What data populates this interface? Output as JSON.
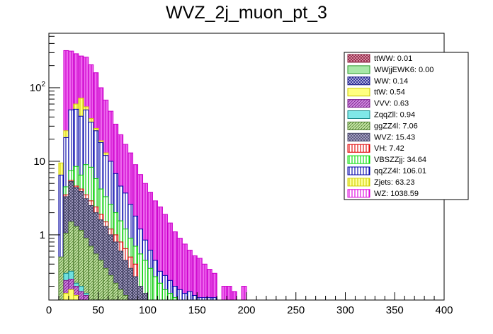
{
  "chart_data": {
    "type": "bar",
    "title": "WVZ_2j_muon_pt_3",
    "xlabel": "",
    "ylabel": "",
    "x_scale": "linear",
    "y_scale": "log",
    "xlim": [
      0,
      400
    ],
    "ylim": [
      0.13,
      550
    ],
    "bin_width": 5,
    "grid": false,
    "legend_position": "top-right",
    "x_ticks": [
      {
        "value": 0,
        "label": "0"
      },
      {
        "value": 50,
        "label": "50"
      },
      {
        "value": 100,
        "label": "100"
      },
      {
        "value": 150,
        "label": "150"
      },
      {
        "value": 200,
        "label": "200"
      },
      {
        "value": 250,
        "label": "250"
      },
      {
        "value": 300,
        "label": "300"
      },
      {
        "value": 350,
        "label": "350"
      },
      {
        "value": 400,
        "label": "400"
      }
    ],
    "y_ticks": [
      {
        "value": 1,
        "label": "1",
        "base": "1",
        "exp": ""
      },
      {
        "value": 10,
        "label": "10",
        "base": "10",
        "exp": ""
      },
      {
        "value": 100,
        "label": "10^2",
        "base": "10",
        "exp": "2"
      }
    ],
    "legend": [
      {
        "label": "ttWW: 0.01",
        "color": "#e8a0b8",
        "stroke": "#8a1f3c",
        "pattern": "cross"
      },
      {
        "label": "WWjjEWK6: 0.00",
        "color": "#a8e8a8",
        "stroke": "#2a9a2a",
        "pattern": "solid"
      },
      {
        "label": "WW: 0.14",
        "color": "#d0d0f0",
        "stroke": "#1a1a8a",
        "pattern": "crosshatch"
      },
      {
        "label": "ttW: 0.54",
        "color": "#ffff80",
        "stroke": "#c8c800",
        "pattern": "solid"
      },
      {
        "label": "VVV: 0.63",
        "color": "#cc88dd",
        "stroke": "#7a1a8a",
        "pattern": "diag"
      },
      {
        "label": "ZqqZll: 0.94",
        "color": "#80e8e8",
        "stroke": "#1a8a8a",
        "pattern": "solid"
      },
      {
        "label": "ggZZ4l: 7.06",
        "color": "#c8e8a8",
        "stroke": "#4a7a2a",
        "pattern": "diag"
      },
      {
        "label": "WVZ: 15.43",
        "color": "#b8b0d8",
        "stroke": "#4a4a6a",
        "pattern": "crosshatch"
      },
      {
        "label": "VH: 7.42",
        "color": "#ffffff",
        "stroke": "#e00000",
        "pattern": "vert"
      },
      {
        "label": "VBSZZjj: 34.64",
        "color": "#ffffff",
        "stroke": "#00dd00",
        "pattern": "vert"
      },
      {
        "label": "qqZZ4l: 106.01",
        "color": "#ffffff",
        "stroke": "#0000aa",
        "pattern": "vert"
      },
      {
        "label": "Zjets: 63.23",
        "color": "#ffffa0",
        "stroke": "#d0d000",
        "pattern": "vert"
      },
      {
        "label": "WZ: 1038.59",
        "color": "#ffffff",
        "stroke": "#dd00dd",
        "pattern": "vert"
      }
    ],
    "series": [
      {
        "name": "WZ: 1038.59",
        "edge": "#cc00cc",
        "fill": "#ee66ee",
        "pattern": "vert",
        "bins": [
          [
            15,
            320
          ],
          [
            20,
            315
          ],
          [
            25,
            290
          ],
          [
            30,
            270
          ],
          [
            35,
            260
          ],
          [
            40,
            205
          ],
          [
            45,
            160
          ],
          [
            50,
            100
          ],
          [
            55,
            68
          ],
          [
            60,
            48
          ],
          [
            65,
            32
          ],
          [
            70,
            23
          ],
          [
            75,
            17
          ],
          [
            80,
            13
          ],
          [
            85,
            9
          ],
          [
            90,
            6.6
          ],
          [
            95,
            5.0
          ],
          [
            100,
            3.8
          ],
          [
            105,
            2.9
          ],
          [
            110,
            2.4
          ],
          [
            115,
            1.9
          ],
          [
            120,
            1.45
          ],
          [
            125,
            1.1
          ],
          [
            130,
            0.9
          ],
          [
            135,
            0.75
          ],
          [
            140,
            0.62
          ],
          [
            145,
            0.52
          ],
          [
            150,
            0.48
          ],
          [
            155,
            0.4
          ],
          [
            160,
            0.34
          ],
          [
            165,
            0.3
          ],
          [
            175,
            0.2
          ],
          [
            180,
            0.2
          ],
          [
            185,
            0.17
          ],
          [
            195,
            0.2
          ]
        ]
      },
      {
        "name": "Zjets: 63.23",
        "edge": "#d0d000",
        "fill": "#ffff80",
        "pattern": "vert",
        "bins": [
          [
            10,
            9.5
          ],
          [
            15,
            26
          ],
          [
            20,
            40
          ],
          [
            25,
            60
          ],
          [
            30,
            72
          ],
          [
            35,
            55
          ],
          [
            40,
            38
          ],
          [
            45,
            28
          ],
          [
            50,
            19
          ],
          [
            55,
            13
          ]
        ]
      },
      {
        "name": "qqZZ4l: 106.01",
        "edge": "#0000aa",
        "fill": "#ffffff",
        "pattern": "vert",
        "bins": [
          [
            10,
            6.5
          ],
          [
            15,
            21
          ],
          [
            20,
            50
          ],
          [
            25,
            51
          ],
          [
            30,
            41
          ],
          [
            35,
            50
          ],
          [
            40,
            34
          ],
          [
            45,
            26
          ],
          [
            50,
            18
          ],
          [
            55,
            12
          ],
          [
            60,
            10
          ],
          [
            65,
            6.8
          ],
          [
            70,
            4.6
          ],
          [
            75,
            3.7
          ],
          [
            80,
            2.6
          ],
          [
            85,
            1.8
          ],
          [
            90,
            1.2
          ],
          [
            95,
            0.85
          ],
          [
            100,
            0.62
          ],
          [
            105,
            0.45
          ],
          [
            110,
            0.32
          ],
          [
            115,
            0.28
          ],
          [
            120,
            0.24
          ],
          [
            125,
            0.2
          ],
          [
            130,
            0.18
          ],
          [
            135,
            0.16
          ],
          [
            140,
            0.17
          ],
          [
            145,
            0.15
          ],
          [
            150,
            0.14
          ],
          [
            155,
            0.14
          ],
          [
            160,
            0.14
          ],
          [
            165,
            0.14
          ]
        ]
      },
      {
        "name": "VBSZZjj: 34.64",
        "edge": "#00cc00",
        "fill": "#ffffff",
        "pattern": "vert",
        "bins": [
          [
            15,
            4.5
          ],
          [
            20,
            7.5
          ],
          [
            25,
            8.5
          ],
          [
            30,
            6.5
          ],
          [
            35,
            9.0
          ],
          [
            40,
            8.3
          ],
          [
            45,
            5.8
          ],
          [
            50,
            4.2
          ],
          [
            55,
            3.3
          ],
          [
            60,
            2.6
          ],
          [
            65,
            2.0
          ],
          [
            70,
            1.55
          ],
          [
            75,
            1.2
          ],
          [
            80,
            0.9
          ],
          [
            85,
            0.7
          ],
          [
            90,
            0.55
          ],
          [
            95,
            0.45
          ],
          [
            100,
            0.35
          ],
          [
            105,
            0.27
          ],
          [
            110,
            0.22
          ],
          [
            115,
            0.18
          ],
          [
            120,
            0.16
          ],
          [
            125,
            0.14
          ]
        ]
      },
      {
        "name": "VH: 7.42",
        "edge": "#dd0000",
        "fill": "#ffffff",
        "pattern": "vert",
        "bins": [
          [
            15,
            3.5
          ],
          [
            20,
            5.5
          ],
          [
            25,
            4.6
          ],
          [
            30,
            4.2
          ],
          [
            35,
            3.5
          ],
          [
            40,
            2.9
          ],
          [
            45,
            2.4
          ],
          [
            50,
            1.9
          ],
          [
            55,
            1.5
          ],
          [
            60,
            1.2
          ],
          [
            65,
            1.0
          ],
          [
            70,
            0.8
          ],
          [
            75,
            0.65
          ],
          [
            80,
            0.5
          ],
          [
            85,
            0.4
          ]
        ]
      },
      {
        "name": "WVZ: 15.43",
        "edge": "#3a3a5a",
        "fill": "#b0a8d0",
        "pattern": "crosshatch",
        "bins": [
          [
            15,
            3.3
          ],
          [
            20,
            5.3
          ],
          [
            25,
            4.4
          ],
          [
            30,
            3.9
          ],
          [
            35,
            3.1
          ],
          [
            40,
            2.5
          ],
          [
            45,
            2.0
          ],
          [
            50,
            1.6
          ],
          [
            55,
            1.3
          ],
          [
            60,
            1.0
          ],
          [
            65,
            0.8
          ],
          [
            70,
            0.6
          ],
          [
            75,
            0.45
          ],
          [
            80,
            0.35
          ],
          [
            85,
            0.27
          ],
          [
            90,
            0.2
          ],
          [
            95,
            0.16
          ]
        ]
      },
      {
        "name": "ggZZ4l: 7.06",
        "edge": "#4a7a2a",
        "fill": "#c0e0a0",
        "pattern": "diag",
        "bins": [
          [
            10,
            0.5
          ],
          [
            15,
            1.05
          ],
          [
            20,
            1.5
          ],
          [
            25,
            1.3
          ],
          [
            30,
            1.15
          ],
          [
            35,
            0.9
          ],
          [
            40,
            0.7
          ],
          [
            45,
            0.55
          ],
          [
            50,
            0.45
          ],
          [
            55,
            0.35
          ],
          [
            60,
            0.28
          ],
          [
            65,
            0.22
          ],
          [
            70,
            0.18
          ],
          [
            75,
            0.15
          ]
        ]
      },
      {
        "name": "ZqqZll: 0.94",
        "edge": "#1a8a8a",
        "fill": "#70e0e0",
        "pattern": "solid",
        "bins": [
          [
            15,
            0.3
          ],
          [
            20,
            0.32
          ],
          [
            25,
            0.22
          ],
          [
            30,
            0.2
          ],
          [
            35,
            0.16
          ]
        ]
      },
      {
        "name": "VVV: 0.63",
        "edge": "#7a1a8a",
        "fill": "#cc80dd",
        "pattern": "diag",
        "bins": [
          [
            15,
            0.24
          ],
          [
            20,
            0.25
          ],
          [
            25,
            0.2
          ],
          [
            30,
            0.17
          ],
          [
            35,
            0.15
          ]
        ]
      },
      {
        "name": "ttW: 0.54",
        "edge": "#c8c800",
        "fill": "#ffff70",
        "pattern": "solid",
        "bins": [
          [
            15,
            0.16
          ],
          [
            20,
            0.18
          ],
          [
            25,
            0.15
          ]
        ]
      }
    ]
  }
}
